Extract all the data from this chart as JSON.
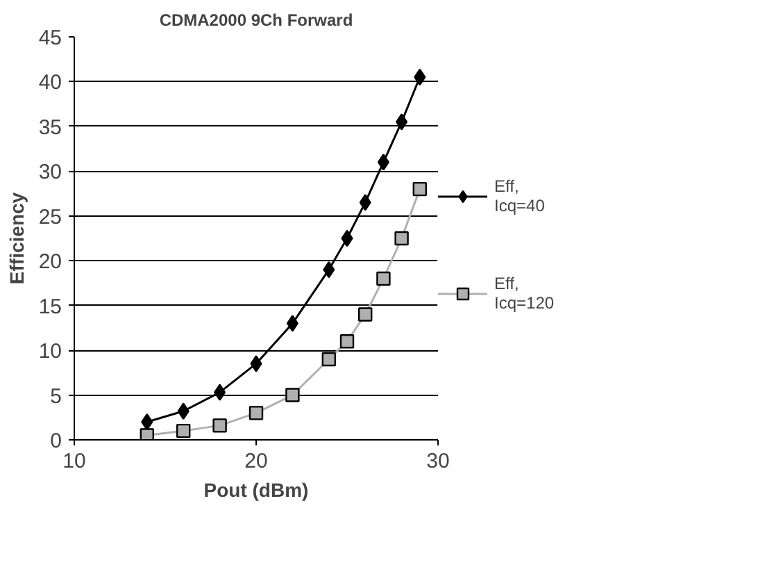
{
  "chart_data": {
    "type": "line",
    "title": "CDMA2000 9Ch Forward",
    "xlabel": "Pout (dBm)",
    "ylabel": "Efficiency",
    "xlim": [
      10,
      30
    ],
    "xticks": [
      10,
      20,
      30
    ],
    "ylim": [
      0,
      45
    ],
    "yticks": [
      0,
      5,
      10,
      15,
      20,
      25,
      30,
      35,
      40,
      45
    ],
    "grid": "y",
    "legend": "right",
    "series": [
      {
        "name": "Eff,\nIcq=40",
        "color": "#000000",
        "marker": "diamond",
        "x": [
          14,
          16,
          18,
          20,
          22,
          24,
          25,
          26,
          27,
          28,
          29
        ],
        "values": [
          2,
          3.2,
          5.3,
          8.5,
          13,
          19,
          22.5,
          26.5,
          31,
          35.5,
          40.5
        ]
      },
      {
        "name": "Eff,\nIcq=120",
        "color": "#b0b0b0",
        "marker": "square",
        "x": [
          14,
          16,
          18,
          20,
          22,
          24,
          25,
          26,
          27,
          28,
          29
        ],
        "values": [
          0.5,
          1,
          1.6,
          3,
          5,
          9,
          11,
          14,
          18,
          22.5,
          28
        ]
      }
    ]
  }
}
